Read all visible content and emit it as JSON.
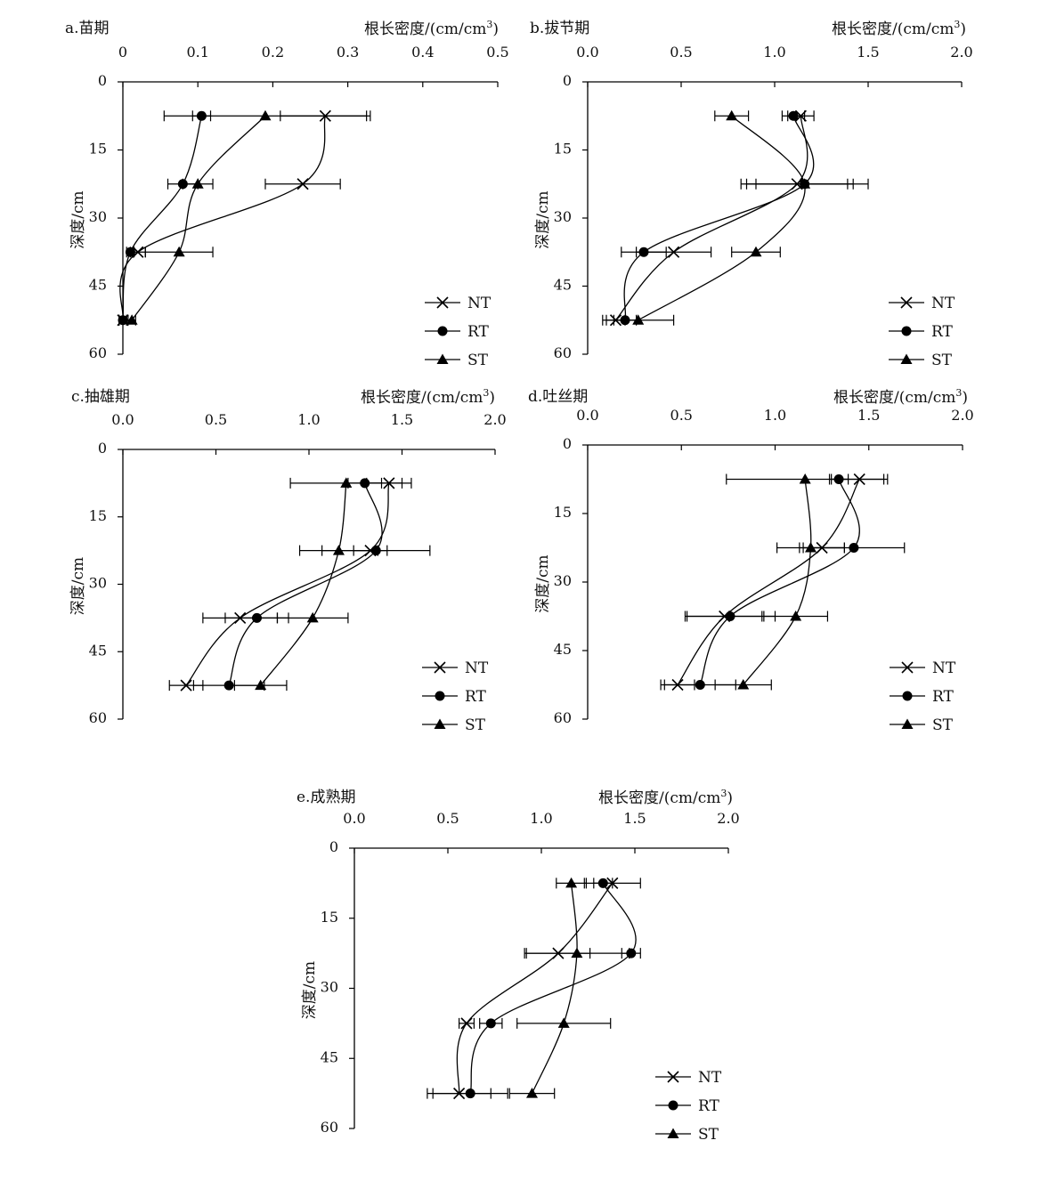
{
  "figure": {
    "panels": [
      {
        "id": "a",
        "title": "a.苗期",
        "xlabel": "根长密度/(cm/cm",
        "xlabel_sup": "3",
        "xlabel_tail": ")",
        "ylabel": "深度/cm"
      },
      {
        "id": "b",
        "title": "b.拔节期",
        "xlabel": "根长密度/(cm/cm",
        "xlabel_sup": "3",
        "xlabel_tail": ")",
        "ylabel": "深度/cm"
      },
      {
        "id": "c",
        "title": "c.抽雄期",
        "xlabel": "根长密度/(cm/cm",
        "xlabel_sup": "3",
        "xlabel_tail": ")",
        "ylabel": "深度/cm"
      },
      {
        "id": "d",
        "title": "d.吐丝期",
        "xlabel": "根长密度/(cm/cm",
        "xlabel_sup": "3",
        "xlabel_tail": ")",
        "ylabel": "深度/cm"
      },
      {
        "id": "e",
        "title": "e.成熟期",
        "xlabel": "根长密度/(cm/cm",
        "xlabel_sup": "3",
        "xlabel_tail": ")",
        "ylabel": "深度/cm"
      }
    ]
  },
  "chart_data": [
    {
      "type": "line",
      "title": "a.苗期",
      "xlabel": "根长密度/(cm/cm3)",
      "ylabel": "深度/cm",
      "xlim": [
        0,
        0.5
      ],
      "xticks": [
        "0",
        "0.1",
        "0.2",
        "0.3",
        "0.4",
        "0.5"
      ],
      "ylim": [
        0,
        60
      ],
      "yticks": [
        "0",
        "15",
        "30",
        "45",
        "60"
      ],
      "y_inverted": true,
      "x_axis_position": "top",
      "legend": "bottom-right",
      "grid": false,
      "depths": [
        7.5,
        22.5,
        37.5,
        52.5
      ],
      "series": [
        {
          "name": "NT",
          "marker": "cross",
          "values": [
            0.27,
            0.24,
            0.02,
            0.0
          ],
          "errors": [
            0.06,
            0.05,
            0.01,
            0.005
          ]
        },
        {
          "name": "RT",
          "marker": "circle",
          "values": [
            0.105,
            0.08,
            0.01,
            0.0
          ],
          "errors": [
            0.012,
            0.02,
            0.005,
            0.005
          ]
        },
        {
          "name": "ST",
          "marker": "triangle",
          "values": [
            0.19,
            0.1,
            0.075,
            0.012
          ],
          "errors": [
            0.135,
            0.02,
            0.045,
            0.005
          ]
        }
      ]
    },
    {
      "type": "line",
      "title": "b.拔节期",
      "xlabel": "根长密度/(cm/cm3)",
      "ylabel": "深度/cm",
      "xlim": [
        0,
        2
      ],
      "xticks": [
        "0.0",
        "0.5",
        "1.0",
        "1.5",
        "2.0"
      ],
      "ylim": [
        0,
        60
      ],
      "yticks": [
        "0",
        "15",
        "30",
        "45",
        "60"
      ],
      "y_inverted": true,
      "x_axis_position": "top",
      "legend": "bottom-right",
      "grid": false,
      "depths": [
        7.5,
        22.5,
        37.5,
        52.5
      ],
      "series": [
        {
          "name": "NT",
          "marker": "cross",
          "values": [
            1.14,
            1.12,
            0.46,
            0.15
          ],
          "errors": [
            0.07,
            0.27,
            0.2,
            0.05
          ]
        },
        {
          "name": "RT",
          "marker": "circle",
          "values": [
            1.1,
            1.16,
            0.3,
            0.2
          ],
          "errors": [
            0.06,
            0.26,
            0.12,
            0.06
          ]
        },
        {
          "name": "ST",
          "marker": "triangle",
          "values": [
            0.77,
            1.16,
            0.9,
            0.27
          ],
          "errors": [
            0.09,
            0.34,
            0.13,
            0.19
          ]
        }
      ]
    },
    {
      "type": "line",
      "title": "c.抽雄期",
      "xlabel": "根长密度/(cm/cm3)",
      "ylabel": "深度/cm",
      "xlim": [
        0,
        2
      ],
      "xticks": [
        "0.0",
        "0.5",
        "1.0",
        "1.5",
        "2.0"
      ],
      "ylim": [
        0,
        60
      ],
      "yticks": [
        "0",
        "15",
        "30",
        "45",
        "60"
      ],
      "y_inverted": true,
      "x_axis_position": "top",
      "legend": "bottom-right",
      "grid": false,
      "depths": [
        7.5,
        22.5,
        37.5,
        52.5
      ],
      "series": [
        {
          "name": "NT",
          "marker": "cross",
          "values": [
            1.43,
            1.33,
            0.63,
            0.34
          ],
          "errors": [
            0.12,
            0.09,
            0.2,
            0.09
          ]
        },
        {
          "name": "RT",
          "marker": "circle",
          "values": [
            1.3,
            1.36,
            0.72,
            0.57
          ],
          "errors": [
            0.09,
            0.29,
            0.17,
            0.19
          ]
        },
        {
          "name": "ST",
          "marker": "triangle",
          "values": [
            1.2,
            1.16,
            1.02,
            0.74
          ],
          "errors": [
            0.3,
            0.21,
            0.19,
            0.14
          ]
        }
      ]
    },
    {
      "type": "line",
      "title": "d.吐丝期",
      "xlabel": "根长密度/(cm/cm3)",
      "ylabel": "深度/cm",
      "xlim": [
        0,
        2
      ],
      "xticks": [
        "0.0",
        "0.5",
        "1.0",
        "1.5",
        "2.0"
      ],
      "ylim": [
        0,
        60
      ],
      "yticks": [
        "0",
        "15",
        "30",
        "45",
        "60"
      ],
      "y_inverted": true,
      "x_axis_position": "top",
      "legend": "bottom-right",
      "grid": false,
      "depths": [
        7.5,
        22.5,
        37.5,
        52.5
      ],
      "series": [
        {
          "name": "NT",
          "marker": "cross",
          "values": [
            1.45,
            1.25,
            0.73,
            0.48
          ],
          "errors": [
            0.15,
            0.12,
            0.2,
            0.09
          ]
        },
        {
          "name": "RT",
          "marker": "circle",
          "values": [
            1.34,
            1.42,
            0.76,
            0.6
          ],
          "errors": [
            0.05,
            0.27,
            0.24,
            0.19
          ]
        },
        {
          "name": "ST",
          "marker": "triangle",
          "values": [
            1.16,
            1.19,
            1.11,
            0.83
          ],
          "errors": [
            0.42,
            0.18,
            0.17,
            0.15
          ]
        }
      ]
    },
    {
      "type": "line",
      "title": "e.成熟期",
      "xlabel": "根长密度/(cm/cm3)",
      "ylabel": "深度/cm",
      "xlim": [
        0,
        2
      ],
      "xticks": [
        "0.0",
        "0.5",
        "1.0",
        "1.5",
        "2.0"
      ],
      "ylim": [
        0,
        60
      ],
      "yticks": [
        "0",
        "15",
        "30",
        "45",
        "60"
      ],
      "y_inverted": true,
      "x_axis_position": "top",
      "legend": "bottom-right",
      "grid": false,
      "depths": [
        7.5,
        22.5,
        37.5,
        52.5
      ],
      "series": [
        {
          "name": "NT",
          "marker": "cross",
          "values": [
            1.38,
            1.09,
            0.6,
            0.56
          ],
          "errors": [
            0.15,
            0.17,
            0.04,
            0.17
          ]
        },
        {
          "name": "RT",
          "marker": "circle",
          "values": [
            1.33,
            1.48,
            0.73,
            0.62
          ],
          "errors": [
            0.05,
            0.05,
            0.06,
            0.2
          ]
        },
        {
          "name": "ST",
          "marker": "triangle",
          "values": [
            1.16,
            1.19,
            1.12,
            0.95
          ],
          "errors": [
            0.08,
            0.28,
            0.25,
            0.12
          ]
        }
      ]
    }
  ]
}
